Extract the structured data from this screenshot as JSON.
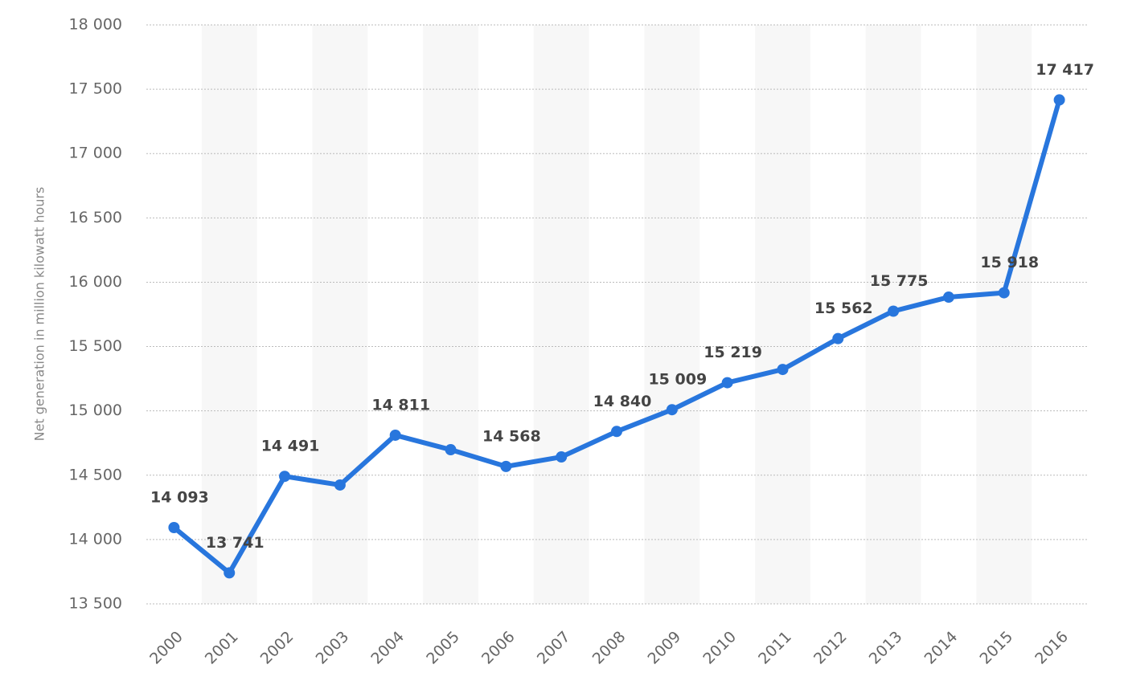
{
  "chart_data": {
    "type": "line",
    "y_label": "Net generation in million kilowatt hours",
    "categories": [
      "2000",
      "2001",
      "2002",
      "2003",
      "2004",
      "2005",
      "2006",
      "2007",
      "2008",
      "2009",
      "2010",
      "2011",
      "2012",
      "2013",
      "2014",
      "2015",
      "2016"
    ],
    "series": [
      {
        "name": "Net generation",
        "color": "#2876dd",
        "values": [
          14093,
          13741,
          14491,
          14424,
          14811,
          14698,
          14568,
          14642,
          14840,
          15009,
          15219,
          15322,
          15562,
          15775,
          15884,
          15918,
          17417
        ],
        "value_labels": [
          "14 093",
          "13 741",
          "14 491",
          null,
          "14 811",
          null,
          "14 568",
          null,
          "14 840",
          "15 009",
          "15 219",
          null,
          "15 562",
          "15 775",
          null,
          "15 918",
          "17 417"
        ]
      }
    ],
    "ylim": [
      13500,
      18000
    ],
    "yticks": [
      {
        "value": 13500,
        "label": "13 500"
      },
      {
        "value": 14000,
        "label": "14 000"
      },
      {
        "value": 14500,
        "label": "14 500"
      },
      {
        "value": 15000,
        "label": "15 000"
      },
      {
        "value": 15500,
        "label": "15 500"
      },
      {
        "value": 16000,
        "label": "16 000"
      },
      {
        "value": 16500,
        "label": "16 500"
      },
      {
        "value": 17000,
        "label": "17 000"
      },
      {
        "value": 17500,
        "label": "17 500"
      },
      {
        "value": 18000,
        "label": "18 000"
      }
    ],
    "grid": true
  }
}
